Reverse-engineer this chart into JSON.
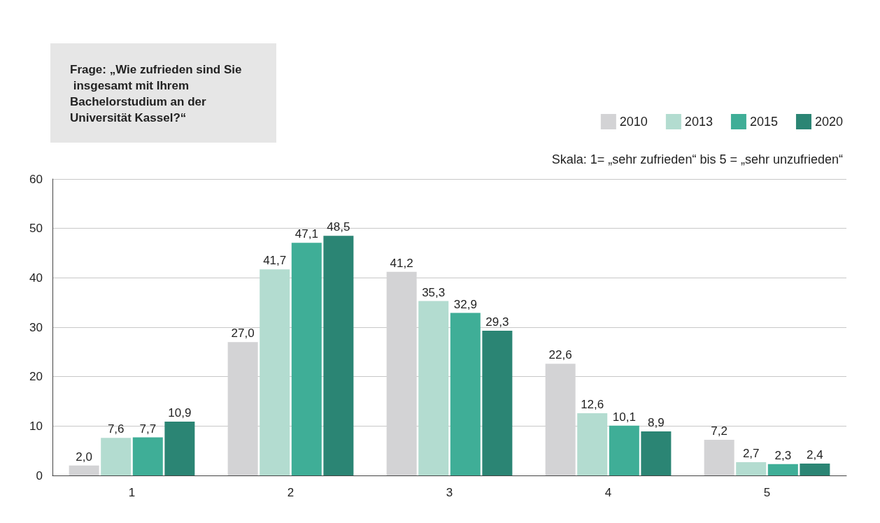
{
  "chart_data": {
    "type": "bar",
    "title": "Frage: „Wie zufrieden sind Sie insgesamt mit Ihrem Bachelorstudium an der Universität Kassel?“",
    "subtitle": "Skala: 1= „sehr zufrieden“ bis 5 = „sehr unzufrieden“",
    "categories": [
      "1",
      "2",
      "3",
      "4",
      "5"
    ],
    "series": [
      {
        "name": "2010",
        "color": "#d3d3d5",
        "values": [
          2.0,
          27.0,
          41.2,
          22.6,
          7.2
        ],
        "value_labels": [
          "2,0",
          "27,0",
          "41,2",
          "22,6",
          "7,2"
        ]
      },
      {
        "name": "2013",
        "color": "#b3dcd0",
        "values": [
          7.6,
          41.7,
          35.3,
          12.6,
          2.7
        ],
        "value_labels": [
          "7,6",
          "41,7",
          "35,3",
          "12,6",
          "2,7"
        ]
      },
      {
        "name": "2015",
        "color": "#3fae97",
        "values": [
          7.7,
          47.1,
          32.9,
          10.1,
          2.3
        ],
        "value_labels": [
          "7,7",
          "47,1",
          "32,9",
          "10,1",
          "2,3"
        ]
      },
      {
        "name": "2020",
        "color": "#2b8574",
        "values": [
          10.9,
          48.5,
          29.3,
          8.9,
          2.4
        ],
        "value_labels": [
          "10,9",
          "48,5",
          "29,3",
          "8,9",
          "2,4"
        ]
      }
    ],
    "ylim": [
      0,
      60
    ],
    "yticks": [
      0,
      10,
      20,
      30,
      40,
      50,
      60
    ],
    "grid": "y",
    "legend": "top right"
  }
}
